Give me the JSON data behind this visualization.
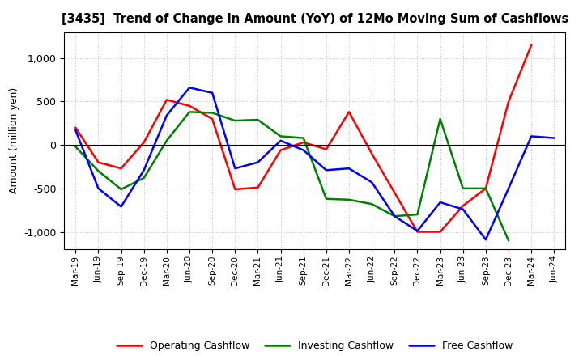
{
  "title": "[3435]  Trend of Change in Amount (YoY) of 12Mo Moving Sum of Cashflows",
  "ylabel": "Amount (million yen)",
  "x_labels": [
    "Mar-19",
    "Jun-19",
    "Sep-19",
    "Dec-19",
    "Mar-20",
    "Jun-20",
    "Sep-20",
    "Dec-20",
    "Mar-21",
    "Jun-21",
    "Sep-21",
    "Dec-21",
    "Mar-22",
    "Jun-22",
    "Sep-22",
    "Dec-22",
    "Mar-23",
    "Jun-23",
    "Sep-23",
    "Dec-23",
    "Mar-24",
    "Jun-24"
  ],
  "operating": [
    200,
    -200,
    -270,
    30,
    520,
    450,
    300,
    -510,
    -490,
    -60,
    30,
    -50,
    380,
    -100,
    -550,
    -1000,
    -1000,
    -700,
    -500,
    500,
    1150,
    null
  ],
  "investing": [
    -20,
    -300,
    -510,
    -380,
    50,
    380,
    370,
    280,
    290,
    100,
    80,
    -620,
    -630,
    -680,
    -820,
    -800,
    300,
    -500,
    -500,
    -1100,
    null,
    null
  ],
  "free": [
    170,
    -500,
    -710,
    -290,
    340,
    660,
    600,
    -270,
    -200,
    50,
    -60,
    -290,
    -270,
    -430,
    -820,
    -990,
    -660,
    -740,
    -1090,
    -500,
    100,
    80
  ],
  "colors": {
    "operating": "#ff0000",
    "investing": "#008000",
    "free": "#0000ff"
  },
  "ylim": [
    -1200,
    1300
  ],
  "yticks": [
    -1000,
    -500,
    0,
    500,
    1000
  ],
  "background": "#ffffff",
  "grid_color": "#bbbbbb"
}
